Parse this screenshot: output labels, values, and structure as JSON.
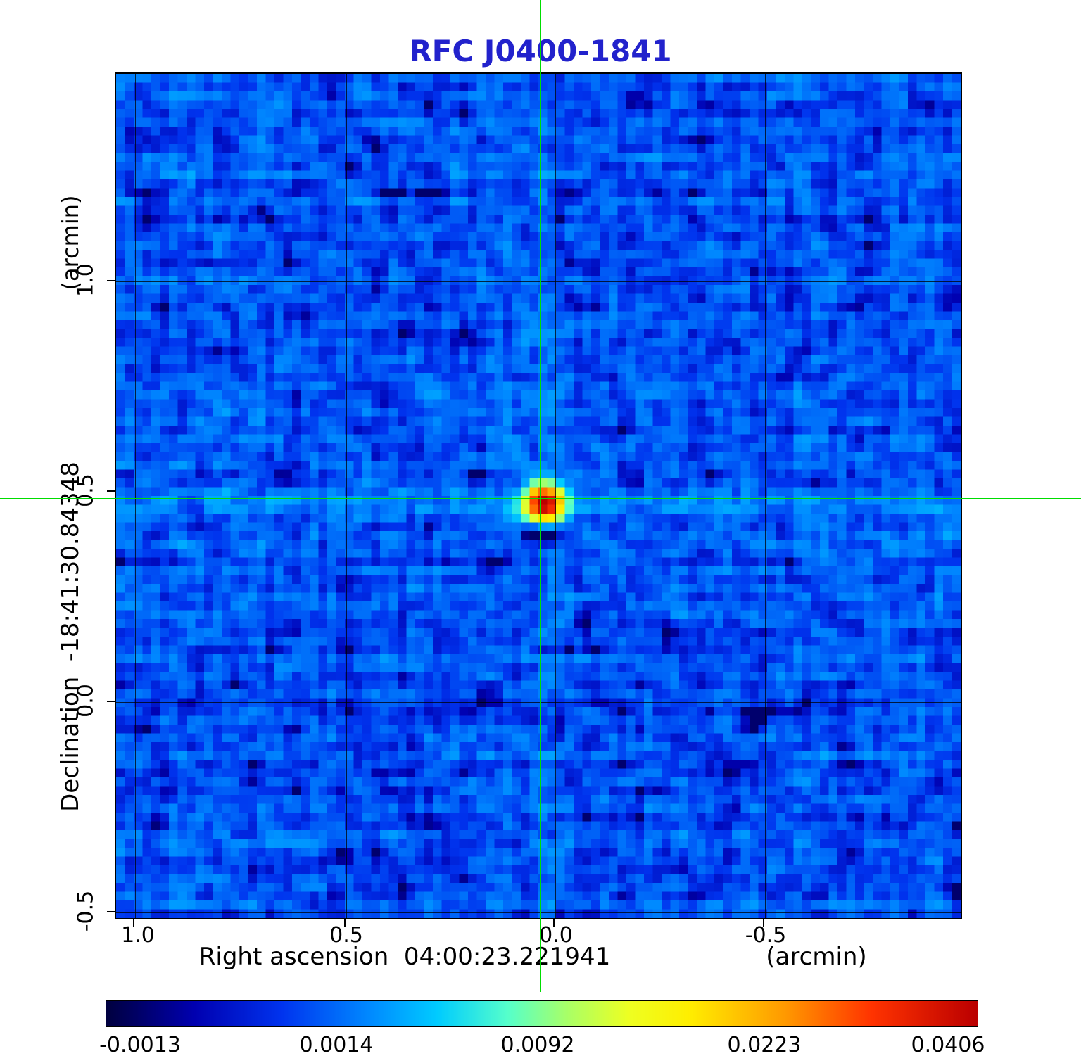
{
  "figure": {
    "title": "RFC J0400-1841",
    "title_color": "#2222cc"
  },
  "chart_data": {
    "type": "heatmap",
    "title": "RFC J0400-1841",
    "xlabel": "Right ascension  04:00:23.221941",
    "xunit": "(arcmin)",
    "ylabel": "Declination  -18:41:30.84348",
    "yunit": "(arcmin)",
    "x_ticks": [
      "1.0",
      "0.5",
      "0.0",
      "-0.5"
    ],
    "y_ticks": [
      "1.0",
      "0.5",
      "0.0",
      "-0.5"
    ],
    "x_range_arcmin": {
      "left": 1.05,
      "right": -0.97
    },
    "y_range_arcmin": {
      "bottom": -0.52,
      "top": 1.49
    },
    "source": {
      "name": "RFC J0400-1841",
      "ra": "04:00:23.221941",
      "dec": "-18:41:30.84348",
      "peak_value": 0.0406,
      "x_offset_arcmin": 0.03,
      "y_offset_arcmin": 0.48
    },
    "crosshair": {
      "x_frac": 0.5025,
      "y_frac": 0.5033,
      "color": "#00dd00"
    },
    "colorbar": {
      "tick_labels": [
        "-0.0013",
        "0.0014",
        "0.0092",
        "0.0223",
        "0.0406"
      ],
      "vmin": -0.0013,
      "vmax": 0.0406,
      "t0": 0.04,
      "k": 4.5,
      "stops": [
        {
          "t": 0.0,
          "color": "#000040"
        },
        {
          "t": 0.1,
          "color": "#0000b0"
        },
        {
          "t": 0.2,
          "color": "#0033ee"
        },
        {
          "t": 0.3,
          "color": "#0088ff"
        },
        {
          "t": 0.38,
          "color": "#00ccff"
        },
        {
          "t": 0.46,
          "color": "#55ffcc"
        },
        {
          "t": 0.53,
          "color": "#aaff66"
        },
        {
          "t": 0.6,
          "color": "#eeff22"
        },
        {
          "t": 0.67,
          "color": "#ffee00"
        },
        {
          "t": 0.78,
          "color": "#ff9900"
        },
        {
          "t": 0.88,
          "color": "#ff3300"
        },
        {
          "t": 1.0,
          "color": "#bb0000"
        }
      ]
    },
    "noise": {
      "grid": 96,
      "seed": 42,
      "background_mean": 0.0006,
      "background_sigma": 0.0024
    }
  }
}
